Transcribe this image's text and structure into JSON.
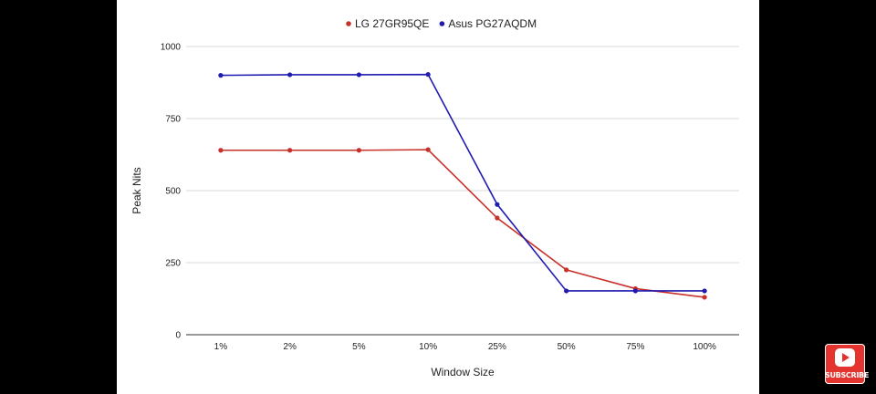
{
  "chart_data": {
    "type": "line",
    "title": "",
    "xlabel": "Window Size",
    "ylabel": "Peak Nits",
    "categories": [
      "1%",
      "2%",
      "5%",
      "10%",
      "25%",
      "50%",
      "75%",
      "100%"
    ],
    "ylim": [
      0,
      1000
    ],
    "yticks": [
      0,
      250,
      500,
      750,
      1000
    ],
    "grid": true,
    "legend_position": "top",
    "series": [
      {
        "name": "LG 27GR95QE",
        "color": "#c8302a",
        "values": [
          640,
          640,
          640,
          642,
          405,
          225,
          160,
          130
        ]
      },
      {
        "name": "Asus PG27AQDM",
        "color": "#1f1bb0",
        "values": [
          900,
          902,
          902,
          903,
          452,
          152,
          152,
          152
        ]
      }
    ]
  },
  "overlay": {
    "subscribe_label": "SUBSCRIBE",
    "icon": "youtube-play-icon"
  }
}
